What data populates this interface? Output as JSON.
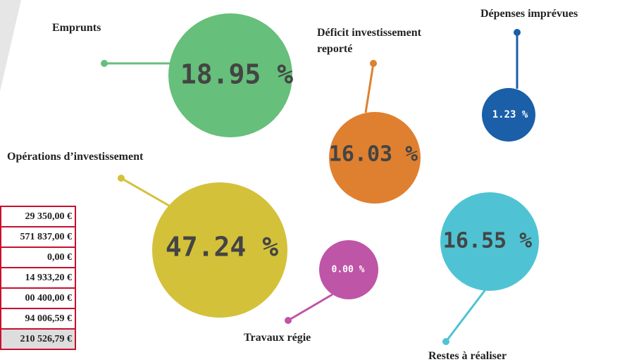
{
  "bubbles": [
    {
      "label": "Emprunts",
      "value": "18.95 %"
    },
    {
      "label": "Déficit investissement",
      "label2": "reporté",
      "value": "16.03 %"
    },
    {
      "label": "Dépenses imprévues",
      "value": "1.23 %"
    },
    {
      "label": "Opérations d’investissement",
      "value": "47.24 %"
    },
    {
      "label": "Travaux régie",
      "value": "0.00 %"
    },
    {
      "label": "Restes à réaliser",
      "value": "16.55 %"
    }
  ],
  "table": {
    "rows": [
      "29 350,00 €",
      "571 837,00 €",
      "0,00 €",
      "14 933,20 €",
      "00 400,00 €",
      "94 006,59 €",
      "210 526,79 €"
    ]
  }
}
